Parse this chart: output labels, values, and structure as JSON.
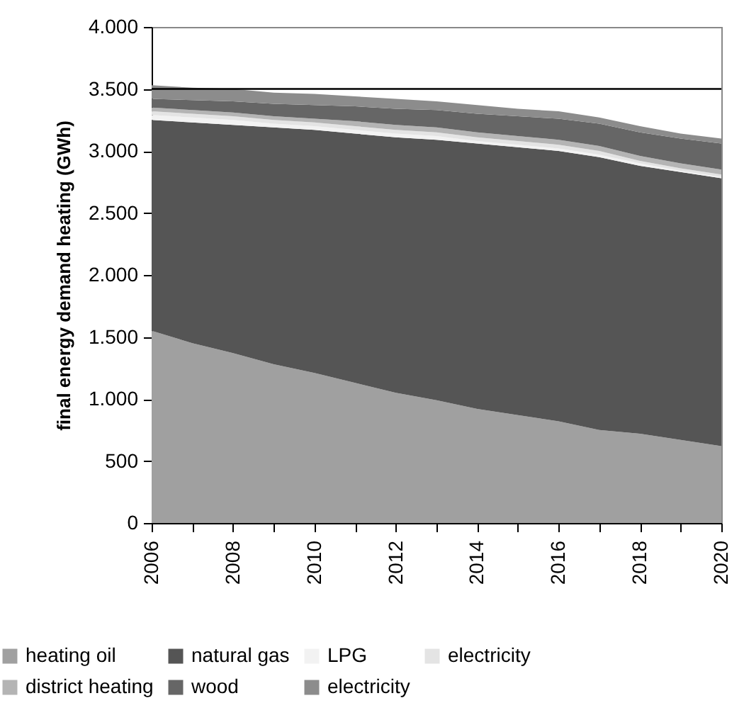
{
  "chart_data": {
    "type": "area",
    "stacked": true,
    "ylabel": "final energy demand heating (GWh)",
    "x": [
      2006,
      2007,
      2008,
      2009,
      2010,
      2011,
      2012,
      2013,
      2014,
      2015,
      2016,
      2017,
      2018,
      2019,
      2020
    ],
    "series": [
      {
        "name": "heating oil",
        "color": "#a0a0a0",
        "values": [
          1550,
          1450,
          1370,
          1280,
          1210,
          1130,
          1050,
          990,
          920,
          870,
          820,
          750,
          720,
          670,
          620
        ]
      },
      {
        "name": "natural gas",
        "color": "#555555",
        "values": [
          1700,
          1780,
          1840,
          1910,
          1960,
          2010,
          2060,
          2100,
          2140,
          2160,
          2180,
          2200,
          2160,
          2160,
          2160
        ]
      },
      {
        "name": "LPG",
        "color": "#f2f2f2",
        "values": [
          40,
          40,
          40,
          30,
          30,
          30,
          30,
          30,
          20,
          20,
          20,
          20,
          20,
          10,
          10
        ]
      },
      {
        "name": "electricity",
        "color": "#e4e4e4",
        "values": [
          30,
          30,
          30,
          30,
          30,
          30,
          30,
          30,
          30,
          30,
          30,
          30,
          20,
          20,
          20
        ]
      },
      {
        "name": "district heating",
        "color": "#b4b4b4",
        "values": [
          30,
          30,
          30,
          30,
          30,
          40,
          40,
          40,
          40,
          40,
          40,
          40,
          40,
          40,
          40
        ]
      },
      {
        "name": "wood",
        "color": "#666666",
        "values": [
          70,
          80,
          90,
          100,
          110,
          120,
          130,
          140,
          150,
          160,
          170,
          180,
          190,
          200,
          210
        ]
      },
      {
        "name": "electricity",
        "color": "#8c8c8c",
        "values": [
          110,
          100,
          100,
          90,
          90,
          80,
          80,
          70,
          70,
          60,
          60,
          50,
          50,
          40,
          40
        ]
      }
    ],
    "xlim": [
      2006,
      2020
    ],
    "xticks": [
      2006,
      {
        "value": 2007,
        "label": null
      },
      2008,
      {
        "value": 2009,
        "label": null
      },
      2010,
      {
        "value": 2011,
        "label": null
      },
      2012,
      {
        "value": 2013,
        "label": null
      },
      2014,
      {
        "value": 2015,
        "label": null
      },
      2016,
      {
        "value": 2017,
        "label": null
      },
      2018,
      {
        "value": 2019,
        "label": null
      },
      2020
    ],
    "ylim": [
      0,
      4000
    ],
    "yticks": [
      0,
      {
        "value": 500,
        "label": "500"
      },
      {
        "value": 1000,
        "label": "1.000"
      },
      {
        "value": 1500,
        "label": "1.500"
      },
      {
        "value": 2000,
        "label": "2.000"
      },
      {
        "value": 2500,
        "label": "2.500"
      },
      {
        "value": 3000,
        "label": "3.000"
      },
      {
        "value": 3500,
        "label": "3.500"
      },
      {
        "value": 4000,
        "label": "4.000"
      }
    ],
    "ref_lines": [
      {
        "axis": "y",
        "value": 3500,
        "color": "#000000"
      }
    ],
    "legend": "bottom",
    "grid": false
  }
}
